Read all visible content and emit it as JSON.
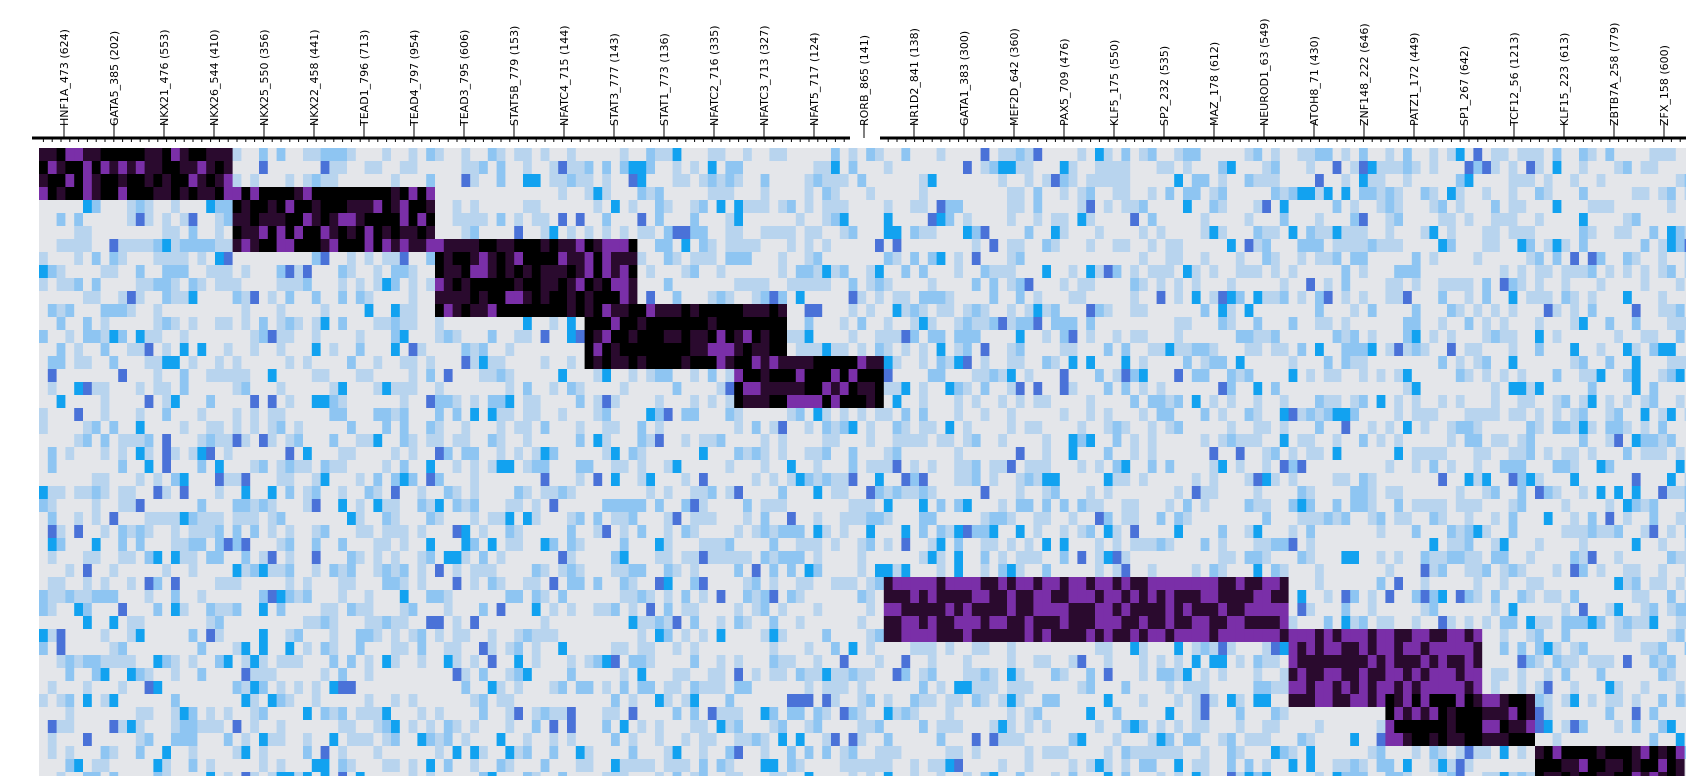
{
  "chart_data": {
    "type": "heatmap",
    "title": "",
    "xlabel": "",
    "ylabel": "",
    "column_labels": [
      "HNF1A_473 (624)",
      "GATA5_385 (202)",
      "NKX21_476 (553)",
      "NKX26_544 (410)",
      "NKX25_550 (356)",
      "NKX22_458 (441)",
      "TEAD1_796 (713)",
      "TEAD4_797 (954)",
      "TEAD3_795 (606)",
      "STAT5B_779 (153)",
      "NFATC4_715 (144)",
      "STAT3_777 (143)",
      "STAT1_773 (136)",
      "NFATC2_716 (335)",
      "NFATC3_713 (327)",
      "NFAT5_717 (124)",
      "RORB_865 (141)",
      "NR1D2_841 (138)",
      "GATA1_383 (300)",
      "MEF2D_642 (360)",
      "PAX5_709 (476)",
      "KLF5_175 (550)",
      "SP2_232 (535)",
      "MAZ_178 (612)",
      "NEUROD1_63 (549)",
      "ATOH8_71 (430)",
      "ZNF148_222 (646)",
      "PATZ1_172 (449)",
      "SP1_267 (642)",
      "TCF12_56 (1213)",
      "KLF15_223 (613)",
      "ZBTB7A_258 (779)",
      "ZFX_158 (600)"
    ],
    "color_scale": [
      "#e4e6ea",
      "#b8d4ee",
      "#8ec5f2",
      "#12a2f0",
      "#4a72d8",
      "#7a2fa8",
      "#2a0a2e",
      "#000000"
    ],
    "blocks": [
      {
        "cols": [
          0,
          3
        ],
        "rows": [
          0,
          3
        ],
        "level": 6
      },
      {
        "cols": [
          4,
          7
        ],
        "rows": [
          3,
          7
        ],
        "level": 6
      },
      {
        "cols": [
          8,
          11
        ],
        "rows": [
          7,
          12
        ],
        "level": 6
      },
      {
        "cols": [
          11,
          14
        ],
        "rows": [
          12,
          16
        ],
        "level": 6
      },
      {
        "cols": [
          14,
          16
        ],
        "rows": [
          16,
          19
        ],
        "level": 6
      },
      {
        "cols": [
          17,
          24
        ],
        "rows": [
          33,
          37
        ],
        "level": 5
      },
      {
        "cols": [
          25,
          28
        ],
        "rows": [
          37,
          42
        ],
        "level": 5
      },
      {
        "cols": [
          27,
          29
        ],
        "rows": [
          42,
          45
        ],
        "level": 6
      },
      {
        "cols": [
          30,
          32
        ],
        "rows": [
          46,
          48
        ],
        "level": 6
      }
    ]
  }
}
